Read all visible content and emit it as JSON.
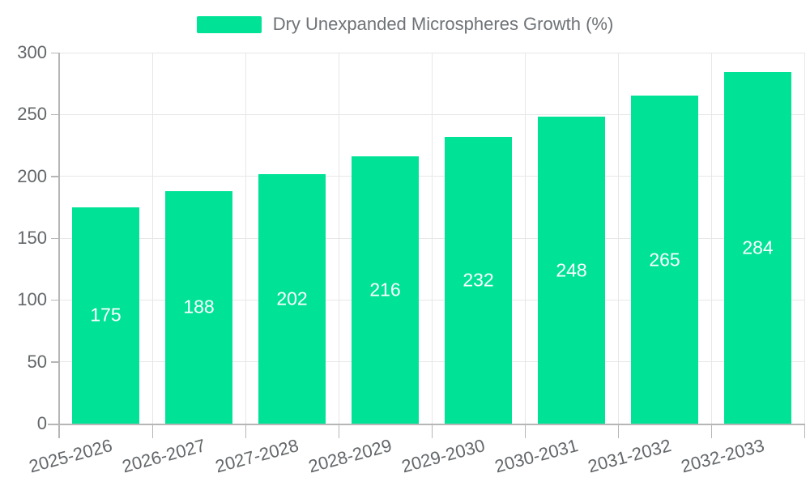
{
  "legend": {
    "label": "Dry Unexpanded Microspheres Growth (%)"
  },
  "chart_data": {
    "type": "bar",
    "title": "Dry Unexpanded Microspheres Growth (%)",
    "categories": [
      "2025-2026",
      "2026-2027",
      "2027-2028",
      "2028-2029",
      "2029-2030",
      "2030-2031",
      "2031-2032",
      "2032-2033"
    ],
    "values": [
      175,
      188,
      202,
      216,
      232,
      248,
      265,
      284
    ],
    "series_name": "Dry Unexpanded Microspheres Growth (%)",
    "xlabel": "",
    "ylabel": "",
    "ylim": [
      0,
      300
    ],
    "yticks": [
      0,
      50,
      100,
      150,
      200,
      250,
      300
    ],
    "grid": true,
    "legend_position": "top",
    "bar_labels_inside": true,
    "colors": {
      "bar": "#00E396",
      "bar_label": "#FFFFFF",
      "axis_text": "#63676A",
      "legend_text": "#6E7377",
      "gridline": "#E7E7E7",
      "axis_line": "#B6B6B6",
      "background": "#FFFFFF"
    }
  }
}
